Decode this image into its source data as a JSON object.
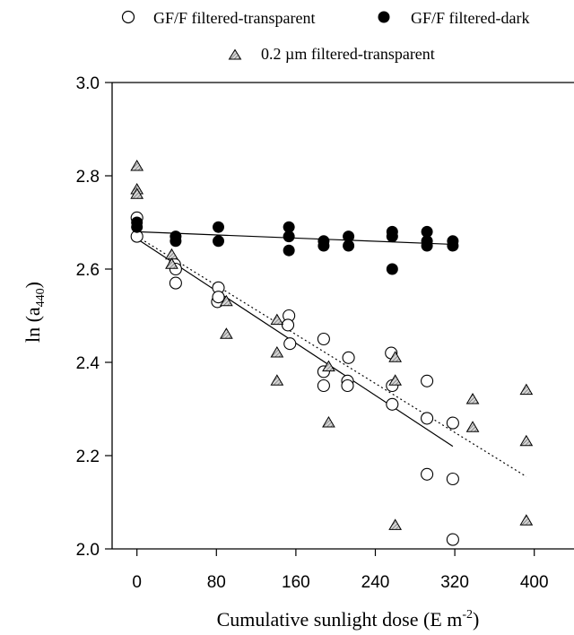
{
  "chart_data": {
    "type": "scatter",
    "xlabel": {
      "main": "Cumulative sunlight dose (E m",
      "sup": "-2",
      "tail": ")"
    },
    "ylabel": {
      "main": "ln (a",
      "sub": "440",
      "tail": ")"
    },
    "xlim": [
      -25,
      440
    ],
    "ylim": [
      2.0,
      3.0
    ],
    "xticks": [
      0,
      80,
      160,
      240,
      320,
      400
    ],
    "yticks": [
      2.0,
      2.2,
      2.4,
      2.6,
      2.8,
      3.0
    ],
    "xtick_labels": [
      "0",
      "80",
      "160",
      "240",
      "320",
      "400"
    ],
    "ytick_labels": [
      "2.0",
      "2.2",
      "2.4",
      "2.6",
      "2.8",
      "3.0"
    ],
    "legend_position": "top",
    "series": [
      {
        "name": "GF/F filtered-transparent",
        "marker": "open-circle",
        "points": [
          [
            0,
            2.71
          ],
          [
            0,
            2.67
          ],
          [
            38,
            2.61
          ],
          [
            39,
            2.6
          ],
          [
            39,
            2.57
          ],
          [
            82,
            2.56
          ],
          [
            81,
            2.53
          ],
          [
            82,
            2.54
          ],
          [
            153,
            2.5
          ],
          [
            152,
            2.48
          ],
          [
            154,
            2.44
          ],
          [
            188,
            2.45
          ],
          [
            188,
            2.38
          ],
          [
            188,
            2.35
          ],
          [
            213,
            2.41
          ],
          [
            212,
            2.36
          ],
          [
            212,
            2.35
          ],
          [
            256,
            2.42
          ],
          [
            257,
            2.35
          ],
          [
            257,
            2.31
          ],
          [
            292,
            2.36
          ],
          [
            292,
            2.28
          ],
          [
            292,
            2.16
          ],
          [
            318,
            2.27
          ],
          [
            318,
            2.15
          ],
          [
            318,
            2.02
          ]
        ],
        "fit": {
          "style": "solid",
          "x": [
            0,
            318
          ],
          "y": [
            2.665,
            2.22
          ]
        }
      },
      {
        "name": "GF/F filtered-dark",
        "marker": "filled-circle",
        "points": [
          [
            0,
            2.7
          ],
          [
            0,
            2.69
          ],
          [
            39,
            2.67
          ],
          [
            39,
            2.66
          ],
          [
            82,
            2.69
          ],
          [
            82,
            2.66
          ],
          [
            153,
            2.69
          ],
          [
            153,
            2.67
          ],
          [
            153,
            2.64
          ],
          [
            188,
            2.66
          ],
          [
            188,
            2.65
          ],
          [
            213,
            2.67
          ],
          [
            213,
            2.65
          ],
          [
            257,
            2.68
          ],
          [
            257,
            2.67
          ],
          [
            257,
            2.6
          ],
          [
            292,
            2.68
          ],
          [
            292,
            2.66
          ],
          [
            292,
            2.65
          ],
          [
            318,
            2.66
          ],
          [
            318,
            2.65
          ]
        ],
        "fit": {
          "style": "solid",
          "x": [
            0,
            318
          ],
          "y": [
            2.68,
            2.653
          ]
        }
      },
      {
        "name": "0.2 µm filtered-transparent",
        "marker": "hatched-triangle",
        "points": [
          [
            0,
            2.82
          ],
          [
            0,
            2.77
          ],
          [
            0,
            2.76
          ],
          [
            35,
            2.63
          ],
          [
            35,
            2.61
          ],
          [
            90,
            2.53
          ],
          [
            90,
            2.46
          ],
          [
            141,
            2.49
          ],
          [
            141,
            2.42
          ],
          [
            141,
            2.36
          ],
          [
            193,
            2.39
          ],
          [
            193,
            2.27
          ],
          [
            260,
            2.41
          ],
          [
            260,
            2.36
          ],
          [
            260,
            2.05
          ],
          [
            338,
            2.32
          ],
          [
            338,
            2.26
          ],
          [
            392,
            2.34
          ],
          [
            392,
            2.23
          ],
          [
            392,
            2.06
          ]
        ],
        "fit": {
          "style": "dotted",
          "x": [
            0,
            392
          ],
          "y": [
            2.67,
            2.155
          ]
        }
      }
    ]
  }
}
